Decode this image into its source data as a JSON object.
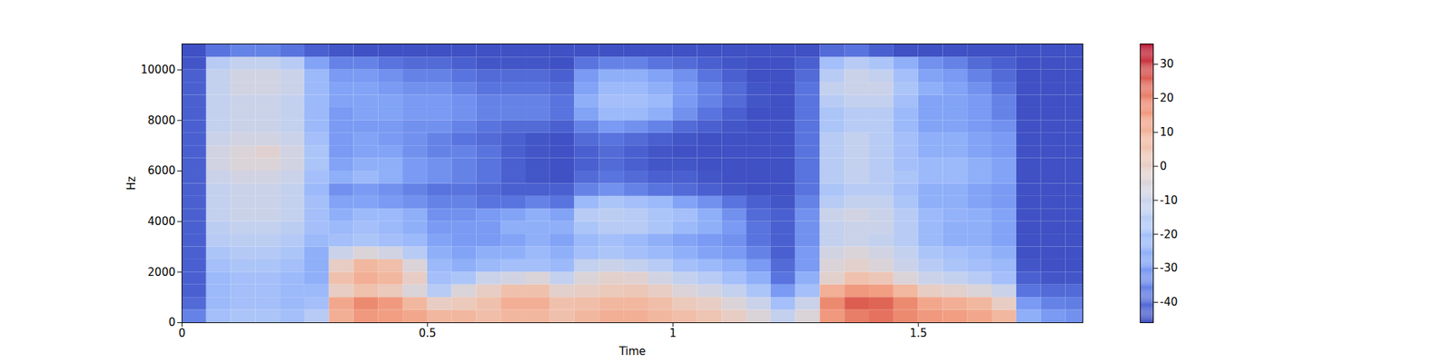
{
  "chart_data": {
    "type": "heatmap",
    "x_label": "Time",
    "y_label": "Hz",
    "xlim": [
      0,
      1.835
    ],
    "xticks": [
      0,
      0.5,
      1,
      1.5
    ],
    "ylim": [
      0,
      11025
    ],
    "yticks": [
      0,
      2000,
      4000,
      6000,
      8000,
      10000
    ],
    "time_edges": [
      0,
      0.05,
      0.1,
      0.15,
      0.2,
      0.25,
      0.3,
      0.35,
      0.4,
      0.45,
      0.5,
      0.55,
      0.6,
      0.65,
      0.7,
      0.75,
      0.8,
      0.85,
      0.9,
      0.95,
      1.0,
      1.05,
      1.1,
      1.15,
      1.2,
      1.25,
      1.3,
      1.35,
      1.4,
      1.45,
      1.5,
      1.55,
      1.6,
      1.65,
      1.7,
      1.75,
      1.8,
      1.835
    ],
    "freq_edges": [
      0,
      500,
      1000,
      1500,
      2000,
      2500,
      3000,
      3500,
      4000,
      4500,
      5000,
      5500,
      6000,
      6500,
      7000,
      7500,
      8000,
      8500,
      9000,
      9500,
      10000,
      10500,
      11025
    ],
    "cells": [
      [
        -35,
        -20,
        -18,
        -18,
        -20,
        -15,
        10,
        15,
        14,
        12,
        8,
        8,
        6,
        8,
        8,
        5,
        8,
        10,
        10,
        8,
        6,
        4,
        0,
        -5,
        -12,
        -5,
        15,
        20,
        22,
        18,
        15,
        14,
        12,
        8,
        -25,
        -30,
        -32
      ],
      [
        -40,
        -22,
        -20,
        -20,
        -22,
        -20,
        12,
        18,
        15,
        8,
        0,
        2,
        5,
        10,
        10,
        5,
        6,
        8,
        8,
        6,
        2,
        0,
        -5,
        -10,
        -20,
        -10,
        18,
        25,
        24,
        18,
        12,
        10,
        8,
        0,
        -30,
        -35,
        -36
      ],
      [
        -42,
        -22,
        -20,
        -20,
        -22,
        -22,
        0,
        5,
        2,
        -5,
        -15,
        -5,
        0,
        5,
        5,
        -2,
        0,
        2,
        3,
        0,
        -5,
        -8,
        -12,
        -18,
        -30,
        -20,
        10,
        15,
        14,
        8,
        0,
        -2,
        -5,
        -10,
        -38,
        -40,
        -40
      ],
      [
        -42,
        -22,
        -20,
        -20,
        -22,
        -25,
        5,
        10,
        8,
        0,
        -20,
        -18,
        -10,
        -8,
        -5,
        -12,
        -5,
        -2,
        -3,
        -8,
        -12,
        -15,
        -20,
        -25,
        -38,
        -25,
        -2,
        5,
        3,
        -5,
        -10,
        -12,
        -15,
        -20,
        -42,
        -44,
        -44
      ],
      [
        -42,
        -20,
        -18,
        -18,
        -20,
        -25,
        0,
        8,
        6,
        -5,
        -22,
        -25,
        -22,
        -20,
        -20,
        -22,
        -12,
        -10,
        -12,
        -15,
        -20,
        -22,
        -25,
        -30,
        -40,
        -30,
        -5,
        -2,
        -5,
        -10,
        -15,
        -18,
        -20,
        -22,
        -44,
        -45,
        -45
      ],
      [
        -42,
        -18,
        -16,
        -16,
        -18,
        -25,
        -10,
        -5,
        -8,
        -15,
        -25,
        -28,
        -25,
        -25,
        -22,
        -25,
        -20,
        -18,
        -20,
        -22,
        -25,
        -28,
        -30,
        -35,
        -42,
        -30,
        -8,
        -5,
        -8,
        -12,
        -18,
        -20,
        -22,
        -25,
        -45,
        -45,
        -45
      ],
      [
        -42,
        -15,
        -14,
        -14,
        -16,
        -22,
        -20,
        -18,
        -20,
        -22,
        -28,
        -30,
        -30,
        -28,
        -25,
        -28,
        -22,
        -20,
        -22,
        -25,
        -28,
        -30,
        -32,
        -38,
        -42,
        -32,
        -12,
        -10,
        -12,
        -15,
        -22,
        -25,
        -25,
        -28,
        -45,
        -45,
        -45
      ],
      [
        -42,
        -14,
        -12,
        -12,
        -14,
        -20,
        -22,
        -20,
        -22,
        -25,
        -30,
        -30,
        -30,
        -25,
        -25,
        -25,
        -18,
        -15,
        -15,
        -18,
        -22,
        -25,
        -30,
        -38,
        -42,
        -32,
        -12,
        -10,
        -10,
        -15,
        -22,
        -25,
        -25,
        -28,
        -45,
        -45,
        -45
      ],
      [
        -42,
        -12,
        -10,
        -10,
        -12,
        -20,
        -25,
        -22,
        -22,
        -25,
        -32,
        -32,
        -30,
        -28,
        -25,
        -28,
        -15,
        -14,
        -15,
        -18,
        -20,
        -25,
        -32,
        -40,
        -42,
        -32,
        -10,
        -8,
        -10,
        -15,
        -22,
        -24,
        -25,
        -28,
        -45,
        -45,
        -45
      ],
      [
        -42,
        -12,
        -10,
        -10,
        -12,
        -20,
        -28,
        -28,
        -30,
        -32,
        -35,
        -35,
        -38,
        -38,
        -35,
        -38,
        -22,
        -18,
        -20,
        -22,
        -28,
        -32,
        -38,
        -42,
        -44,
        -35,
        -15,
        -12,
        -12,
        -18,
        -25,
        -25,
        -28,
        -30,
        -45,
        -45,
        -45
      ],
      [
        -42,
        -12,
        -10,
        -10,
        -12,
        -22,
        -32,
        -30,
        -32,
        -35,
        -38,
        -38,
        -40,
        -42,
        -42,
        -42,
        -35,
        -32,
        -35,
        -38,
        -40,
        -42,
        -44,
        -45,
        -45,
        -38,
        -18,
        -15,
        -15,
        -20,
        -25,
        -25,
        -28,
        -30,
        -45,
        -45,
        -45
      ],
      [
        -42,
        -10,
        -8,
        -8,
        -10,
        -20,
        -25,
        -22,
        -25,
        -30,
        -32,
        -35,
        -38,
        -42,
        -44,
        -45,
        -40,
        -38,
        -40,
        -42,
        -42,
        -44,
        -45,
        -45,
        -45,
        -38,
        -15,
        -12,
        -15,
        -18,
        -22,
        -22,
        -25,
        -28,
        -45,
        -45,
        -45
      ],
      [
        -42,
        -8,
        -5,
        -5,
        -8,
        -18,
        -28,
        -25,
        -25,
        -30,
        -32,
        -35,
        -38,
        -42,
        -44,
        -45,
        -42,
        -40,
        -42,
        -44,
        -44,
        -45,
        -45,
        -45,
        -45,
        -38,
        -15,
        -12,
        -15,
        -20,
        -22,
        -22,
        -25,
        -28,
        -45,
        -45,
        -45
      ],
      [
        -42,
        -8,
        -5,
        -3,
        -8,
        -18,
        -30,
        -28,
        -28,
        -32,
        -35,
        -35,
        -38,
        -42,
        -44,
        -45,
        -42,
        -40,
        -42,
        -44,
        -45,
        -45,
        -45,
        -45,
        -45,
        -38,
        -15,
        -12,
        -15,
        -20,
        -25,
        -25,
        -28,
        -30,
        -45,
        -45,
        -45
      ],
      [
        -42,
        -10,
        -8,
        -8,
        -10,
        -20,
        -30,
        -28,
        -30,
        -32,
        -35,
        -38,
        -40,
        -42,
        -44,
        -45,
        -40,
        -38,
        -40,
        -42,
        -44,
        -45,
        -45,
        -45,
        -45,
        -38,
        -15,
        -12,
        -15,
        -20,
        -25,
        -25,
        -28,
        -30,
        -45,
        -45,
        -45
      ],
      [
        -42,
        -12,
        -10,
        -10,
        -12,
        -22,
        -30,
        -30,
        -30,
        -32,
        -32,
        -35,
        -38,
        -40,
        -40,
        -42,
        -35,
        -30,
        -32,
        -35,
        -40,
        -42,
        -44,
        -45,
        -45,
        -38,
        -18,
        -15,
        -15,
        -22,
        -28,
        -28,
        -30,
        -32,
        -45,
        -45,
        -45
      ],
      [
        -42,
        -12,
        -10,
        -10,
        -12,
        -22,
        -30,
        -28,
        -28,
        -30,
        -30,
        -32,
        -35,
        -35,
        -35,
        -38,
        -28,
        -22,
        -22,
        -25,
        -32,
        -38,
        -42,
        -45,
        -45,
        -38,
        -18,
        -15,
        -15,
        -22,
        -28,
        -28,
        -30,
        -35,
        -45,
        -45,
        -45
      ],
      [
        -42,
        -12,
        -10,
        -10,
        -12,
        -22,
        -28,
        -28,
        -28,
        -30,
        -30,
        -32,
        -35,
        -35,
        -35,
        -38,
        -25,
        -20,
        -20,
        -22,
        -30,
        -35,
        -40,
        -44,
        -45,
        -38,
        -15,
        -12,
        -12,
        -20,
        -28,
        -28,
        -30,
        -35,
        -45,
        -45,
        -45
      ],
      [
        -42,
        -12,
        -8,
        -8,
        -10,
        -22,
        -28,
        -28,
        -30,
        -32,
        -32,
        -35,
        -38,
        -38,
        -38,
        -40,
        -28,
        -22,
        -22,
        -25,
        -30,
        -35,
        -40,
        -44,
        -45,
        -38,
        -12,
        -10,
        -10,
        -18,
        -25,
        -28,
        -32,
        -38,
        -45,
        -45,
        -45
      ],
      [
        -42,
        -12,
        -8,
        -8,
        -10,
        -22,
        -30,
        -30,
        -32,
        -35,
        -35,
        -38,
        -40,
        -40,
        -40,
        -42,
        -30,
        -25,
        -25,
        -28,
        -32,
        -38,
        -42,
        -45,
        -45,
        -40,
        -15,
        -10,
        -12,
        -20,
        -28,
        -30,
        -35,
        -40,
        -45,
        -45,
        -45
      ],
      [
        -44,
        -15,
        -12,
        -12,
        -15,
        -28,
        -35,
        -35,
        -38,
        -40,
        -40,
        -42,
        -44,
        -44,
        -44,
        -45,
        -38,
        -35,
        -35,
        -38,
        -40,
        -42,
        -44,
        -45,
        -45,
        -42,
        -20,
        -15,
        -18,
        -25,
        -32,
        -35,
        -40,
        -42,
        -45,
        -45,
        -45
      ],
      [
        -45,
        -38,
        -35,
        -35,
        -38,
        -42,
        -44,
        -45,
        -45,
        -45,
        -45,
        -45,
        -45,
        -45,
        -45,
        -45,
        -45,
        -45,
        -45,
        -45,
        -45,
        -45,
        -45,
        -45,
        -45,
        -45,
        -40,
        -38,
        -42,
        -45,
        -45,
        -45,
        -45,
        -45,
        -45,
        -45,
        -45
      ]
    ],
    "colorbar_range": [
      -46,
      36
    ],
    "colorbar_ticks": [
      -40,
      -30,
      -20,
      -10,
      0,
      10,
      20,
      30
    ]
  }
}
